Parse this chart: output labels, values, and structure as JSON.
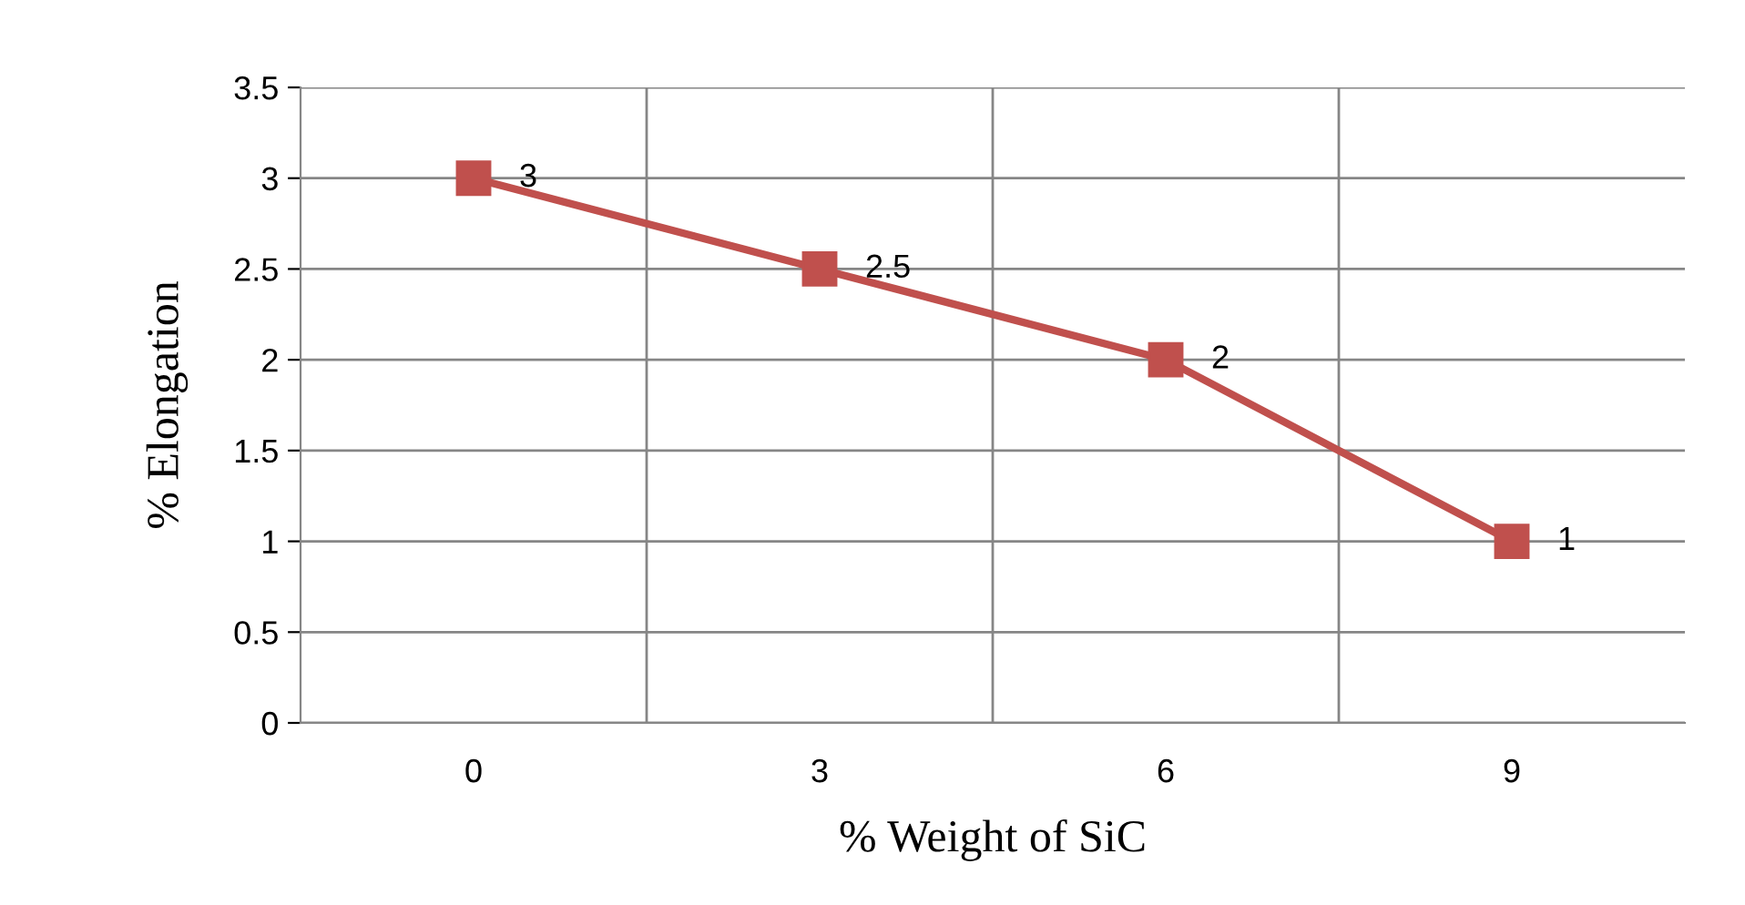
{
  "chart_data": {
    "type": "line",
    "xlabel": "% Weight of SiC",
    "ylabel": "% Elongation",
    "categories": [
      "0",
      "3",
      "6",
      "9"
    ],
    "series": [
      {
        "color": "#c0504d",
        "values": [
          3,
          2.5,
          2,
          1
        ]
      }
    ],
    "ylim": [
      0,
      3.5
    ],
    "yticks": [
      0,
      0.5,
      1,
      1.5,
      2,
      2.5,
      3,
      3.5
    ],
    "grid": true,
    "marker": "square",
    "line_style": "solid",
    "data_labels": true
  }
}
